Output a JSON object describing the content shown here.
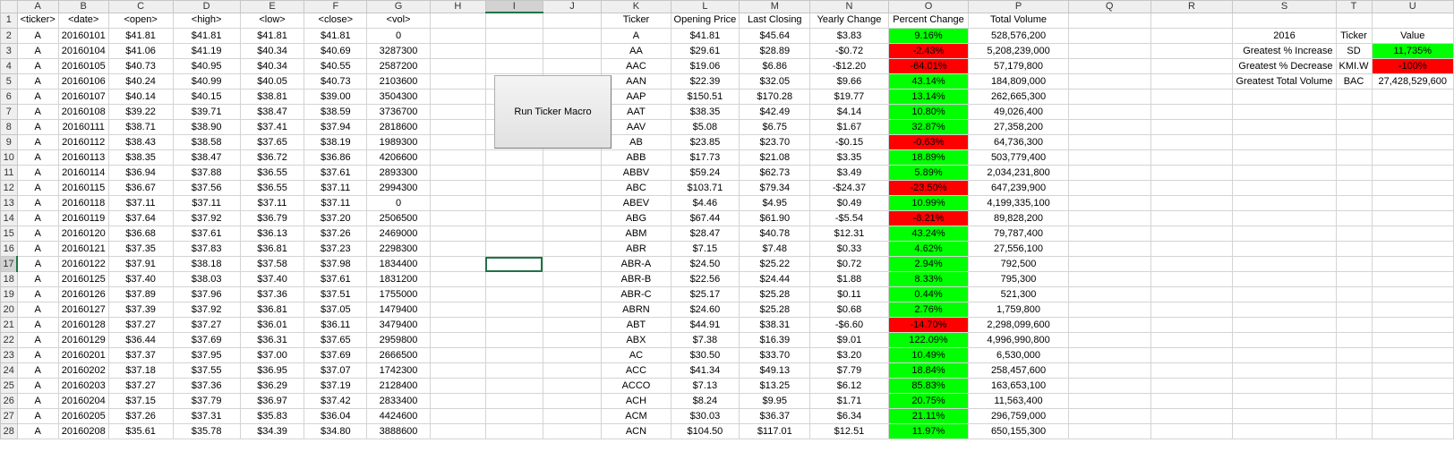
{
  "columns": [
    "A",
    "B",
    "C",
    "D",
    "E",
    "F",
    "G",
    "H",
    "I",
    "J",
    "K",
    "L",
    "M",
    "N",
    "O",
    "P",
    "Q",
    "R",
    "S",
    "T",
    "U"
  ],
  "selected_column": "I",
  "selected_row": 17,
  "button": {
    "label": "Run Ticker Macro"
  },
  "raw_headers": [
    "<ticker>",
    "<date>",
    "<open>",
    "<high>",
    "<low>",
    "<close>",
    "<vol>"
  ],
  "raw_rows": [
    [
      "A",
      "20160101",
      "$41.81",
      "$41.81",
      "$41.81",
      "$41.81",
      "0"
    ],
    [
      "A",
      "20160104",
      "$41.06",
      "$41.19",
      "$40.34",
      "$40.69",
      "3287300"
    ],
    [
      "A",
      "20160105",
      "$40.73",
      "$40.95",
      "$40.34",
      "$40.55",
      "2587200"
    ],
    [
      "A",
      "20160106",
      "$40.24",
      "$40.99",
      "$40.05",
      "$40.73",
      "2103600"
    ],
    [
      "A",
      "20160107",
      "$40.14",
      "$40.15",
      "$38.81",
      "$39.00",
      "3504300"
    ],
    [
      "A",
      "20160108",
      "$39.22",
      "$39.71",
      "$38.47",
      "$38.59",
      "3736700"
    ],
    [
      "A",
      "20160111",
      "$38.71",
      "$38.90",
      "$37.41",
      "$37.94",
      "2818600"
    ],
    [
      "A",
      "20160112",
      "$38.43",
      "$38.58",
      "$37.65",
      "$38.19",
      "1989300"
    ],
    [
      "A",
      "20160113",
      "$38.35",
      "$38.47",
      "$36.72",
      "$36.86",
      "4206600"
    ],
    [
      "A",
      "20160114",
      "$36.94",
      "$37.88",
      "$36.55",
      "$37.61",
      "2893300"
    ],
    [
      "A",
      "20160115",
      "$36.67",
      "$37.56",
      "$36.55",
      "$37.11",
      "2994300"
    ],
    [
      "A",
      "20160118",
      "$37.11",
      "$37.11",
      "$37.11",
      "$37.11",
      "0"
    ],
    [
      "A",
      "20160119",
      "$37.64",
      "$37.92",
      "$36.79",
      "$37.20",
      "2506500"
    ],
    [
      "A",
      "20160120",
      "$36.68",
      "$37.61",
      "$36.13",
      "$37.26",
      "2469000"
    ],
    [
      "A",
      "20160121",
      "$37.35",
      "$37.83",
      "$36.81",
      "$37.23",
      "2298300"
    ],
    [
      "A",
      "20160122",
      "$37.91",
      "$38.18",
      "$37.58",
      "$37.98",
      "1834400"
    ],
    [
      "A",
      "20160125",
      "$37.40",
      "$38.03",
      "$37.40",
      "$37.61",
      "1831200"
    ],
    [
      "A",
      "20160126",
      "$37.89",
      "$37.96",
      "$37.36",
      "$37.51",
      "1755000"
    ],
    [
      "A",
      "20160127",
      "$37.39",
      "$37.92",
      "$36.81",
      "$37.05",
      "1479400"
    ],
    [
      "A",
      "20160128",
      "$37.27",
      "$37.27",
      "$36.01",
      "$36.11",
      "3479400"
    ],
    [
      "A",
      "20160129",
      "$36.44",
      "$37.69",
      "$36.31",
      "$37.65",
      "2959800"
    ],
    [
      "A",
      "20160201",
      "$37.37",
      "$37.95",
      "$37.00",
      "$37.69",
      "2666500"
    ],
    [
      "A",
      "20160202",
      "$37.18",
      "$37.55",
      "$36.95",
      "$37.07",
      "1742300"
    ],
    [
      "A",
      "20160203",
      "$37.27",
      "$37.36",
      "$36.29",
      "$37.19",
      "2128400"
    ],
    [
      "A",
      "20160204",
      "$37.15",
      "$37.79",
      "$36.97",
      "$37.42",
      "2833400"
    ],
    [
      "A",
      "20160205",
      "$37.26",
      "$37.31",
      "$35.83",
      "$36.04",
      "4424600"
    ],
    [
      "A",
      "20160208",
      "$35.61",
      "$35.78",
      "$34.39",
      "$34.80",
      "3888600"
    ]
  ],
  "summary_headers": [
    "Ticker",
    "Opening Price",
    "Last Closing",
    "Yearly Change",
    "Percent Change",
    "Total Volume"
  ],
  "summary_rows": [
    [
      "A",
      "$41.81",
      "$45.64",
      "$3.83",
      "9.16%",
      "528,576,200"
    ],
    [
      "AA",
      "$29.61",
      "$28.89",
      "-$0.72",
      "-2.43%",
      "5,208,239,000"
    ],
    [
      "AAC",
      "$19.06",
      "$6.86",
      "-$12.20",
      "-64.01%",
      "57,179,800"
    ],
    [
      "AAN",
      "$22.39",
      "$32.05",
      "$9.66",
      "43.14%",
      "184,809,000"
    ],
    [
      "AAP",
      "$150.51",
      "$170.28",
      "$19.77",
      "13.14%",
      "262,665,300"
    ],
    [
      "AAT",
      "$38.35",
      "$42.49",
      "$4.14",
      "10.80%",
      "49,026,400"
    ],
    [
      "AAV",
      "$5.08",
      "$6.75",
      "$1.67",
      "32.87%",
      "27,358,200"
    ],
    [
      "AB",
      "$23.85",
      "$23.70",
      "-$0.15",
      "-0.63%",
      "64,736,300"
    ],
    [
      "ABB",
      "$17.73",
      "$21.08",
      "$3.35",
      "18.89%",
      "503,779,400"
    ],
    [
      "ABBV",
      "$59.24",
      "$62.73",
      "$3.49",
      "5.89%",
      "2,034,231,800"
    ],
    [
      "ABC",
      "$103.71",
      "$79.34",
      "-$24.37",
      "-23.50%",
      "647,239,900"
    ],
    [
      "ABEV",
      "$4.46",
      "$4.95",
      "$0.49",
      "10.99%",
      "4,199,335,100"
    ],
    [
      "ABG",
      "$67.44",
      "$61.90",
      "-$5.54",
      "-8.21%",
      "89,828,200"
    ],
    [
      "ABM",
      "$28.47",
      "$40.78",
      "$12.31",
      "43.24%",
      "79,787,400"
    ],
    [
      "ABR",
      "$7.15",
      "$7.48",
      "$0.33",
      "4.62%",
      "27,556,100"
    ],
    [
      "ABR-A",
      "$24.50",
      "$25.22",
      "$0.72",
      "2.94%",
      "792,500"
    ],
    [
      "ABR-B",
      "$22.56",
      "$24.44",
      "$1.88",
      "8.33%",
      "795,300"
    ],
    [
      "ABR-C",
      "$25.17",
      "$25.28",
      "$0.11",
      "0.44%",
      "521,300"
    ],
    [
      "ABRN",
      "$24.60",
      "$25.28",
      "$0.68",
      "2.76%",
      "1,759,800"
    ],
    [
      "ABT",
      "$44.91",
      "$38.31",
      "-$6.60",
      "-14.70%",
      "2,298,099,600"
    ],
    [
      "ABX",
      "$7.38",
      "$16.39",
      "$9.01",
      "122.09%",
      "4,996,990,800"
    ],
    [
      "AC",
      "$30.50",
      "$33.70",
      "$3.20",
      "10.49%",
      "6,530,000"
    ],
    [
      "ACC",
      "$41.34",
      "$49.13",
      "$7.79",
      "18.84%",
      "258,457,600"
    ],
    [
      "ACCO",
      "$7.13",
      "$13.25",
      "$6.12",
      "85.83%",
      "163,653,100"
    ],
    [
      "ACH",
      "$8.24",
      "$9.95",
      "$1.71",
      "20.75%",
      "11,563,400"
    ],
    [
      "ACM",
      "$30.03",
      "$36.37",
      "$6.34",
      "21.11%",
      "296,759,000"
    ],
    [
      "ACN",
      "$104.50",
      "$117.01",
      "$12.51",
      "11.97%",
      "650,155,300"
    ]
  ],
  "greatest": {
    "year": "2016",
    "ticker_header": "Ticker",
    "value_header": "Value",
    "rows": [
      {
        "label": "Greatest % Increase",
        "ticker": "SD",
        "value": "11,735%",
        "color": "green"
      },
      {
        "label": "Greatest % Decrease",
        "ticker": "KMI.W",
        "value": "-100%",
        "color": "red"
      },
      {
        "label": "Greatest Total Volume",
        "ticker": "BAC",
        "value": "27,428,529,600",
        "color": ""
      }
    ]
  },
  "colors": {
    "positive": "#00ff00",
    "negative": "#ff0000",
    "selection": "#217346"
  }
}
